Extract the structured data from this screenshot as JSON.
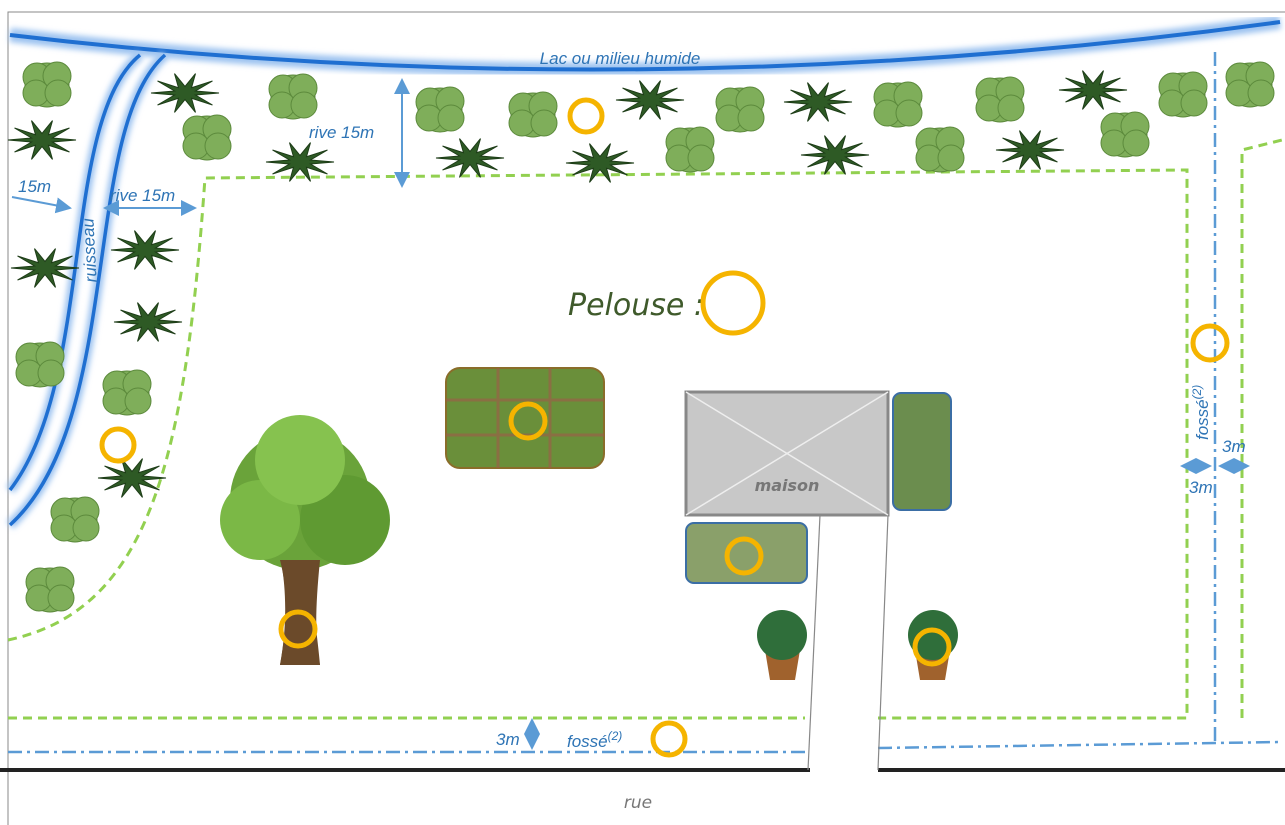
{
  "lake": {
    "label": "Lac ou milieu humide"
  },
  "stream": {
    "label": "ruisseau"
  },
  "buffers": [
    {
      "label": "rive 15m"
    },
    {
      "label": "rive 15m"
    },
    {
      "label": "15m"
    }
  ],
  "lawn": {
    "label": "Pelouse :"
  },
  "house": {
    "label": "maison"
  },
  "ditches": [
    {
      "label": "fossé",
      "note": "(2)",
      "width_labels": [
        "3m",
        "3m"
      ]
    },
    {
      "label": "fossé",
      "note": "(2)",
      "width_labels": [
        "3m"
      ]
    }
  ],
  "street": {
    "label": "rue"
  }
}
